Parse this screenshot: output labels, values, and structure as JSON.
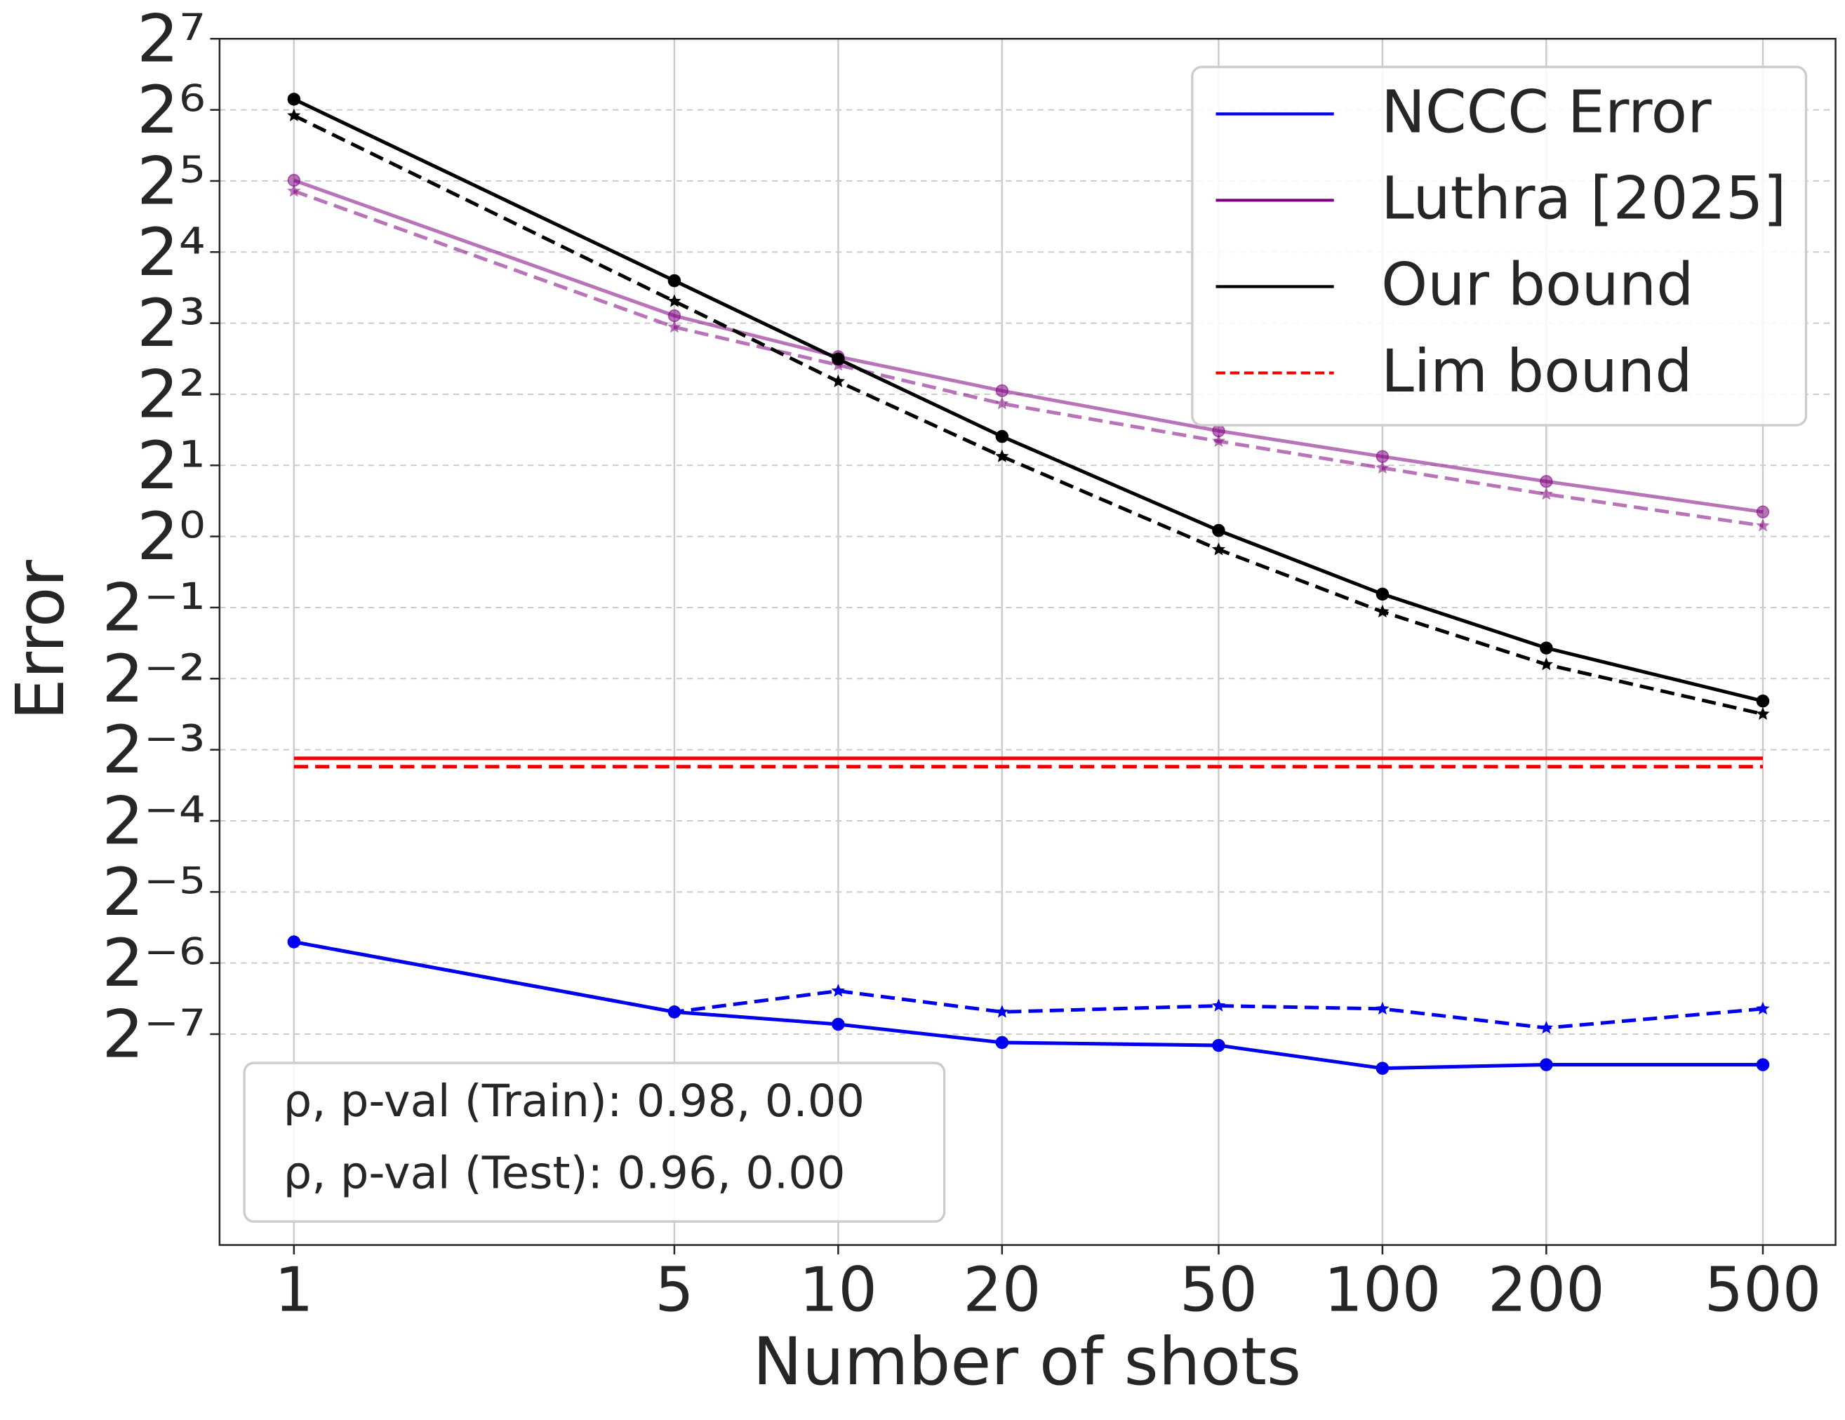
{
  "chart_data": {
    "type": "line",
    "x_label": "Number of shots",
    "y_label": "Error",
    "x_scale": "log",
    "y_scale": "log2",
    "grid": true,
    "legend_position": "upper right",
    "x": [
      1,
      5,
      10,
      20,
      50,
      100,
      200,
      500
    ],
    "xlim": [
      0.73,
      680
    ],
    "xticks": [
      1,
      5,
      10,
      20,
      50,
      100,
      200,
      500
    ],
    "ylim": [
      0.001,
      128
    ],
    "yticks": [
      {
        "value": 128,
        "label": "2⁷"
      },
      {
        "value": 64,
        "label": "2⁶"
      },
      {
        "value": 32,
        "label": "2⁵"
      },
      {
        "value": 16,
        "label": "2⁴"
      },
      {
        "value": 8,
        "label": "2³"
      },
      {
        "value": 4,
        "label": "2²"
      },
      {
        "value": 2,
        "label": "2¹"
      },
      {
        "value": 1,
        "label": "2⁰"
      },
      {
        "value": 0.5,
        "label": "2⁻¹"
      },
      {
        "value": 0.25,
        "label": "2⁻²"
      },
      {
        "value": 0.125,
        "label": "2⁻³"
      },
      {
        "value": 0.0625,
        "label": "2⁻⁴"
      },
      {
        "value": 0.03125,
        "label": "2⁻⁵"
      },
      {
        "value": 0.015625,
        "label": "2⁻⁶"
      },
      {
        "value": 0.0078125,
        "label": "2⁻⁷"
      }
    ],
    "series": [
      {
        "name": "NCCC Error",
        "color": "#0000ee",
        "opacity": 1,
        "markers": true,
        "legend_dashed": false,
        "values": [
          0.0192,
          0.0097,
          0.0086,
          0.0072,
          0.007,
          0.0056,
          0.0058,
          0.0058
        ],
        "test_values": [
          0.0192,
          0.0097,
          0.0119,
          0.0097,
          0.0103,
          0.01,
          0.0083,
          0.01
        ]
      },
      {
        "name": "Luthra [2025]",
        "color": "#800080",
        "opacity": 0.55,
        "markers": true,
        "legend_dashed": false,
        "values": [
          32.2,
          8.6,
          5.77,
          4.14,
          2.8,
          2.18,
          1.71,
          1.27
        ],
        "test_values": [
          29.0,
          7.7,
          5.32,
          3.65,
          2.53,
          1.95,
          1.51,
          1.11
        ]
      },
      {
        "name": "Our bound",
        "color": "#000000",
        "opacity": 1,
        "markers": true,
        "legend_dashed": false,
        "values": [
          71,
          12.1,
          5.64,
          2.65,
          1.06,
          0.57,
          0.337,
          0.201
        ],
        "test_values": [
          60.5,
          9.9,
          4.53,
          2.18,
          0.88,
          0.48,
          0.287,
          0.177
        ]
      },
      {
        "name": "Lim bound",
        "color": "#ee0000",
        "opacity": 1,
        "markers": false,
        "legend_dashed": true,
        "values": [
          0.115,
          0.115,
          0.115,
          0.115,
          0.115,
          0.115,
          0.115,
          0.115
        ],
        "test_values": [
          0.106,
          0.106,
          0.106,
          0.106,
          0.106,
          0.106,
          0.106,
          0.106
        ]
      }
    ],
    "annotations": [
      "ρ, p-val (Train): 0.98, 0.00",
      "ρ, p-val (Test): 0.96, 0.00"
    ]
  }
}
